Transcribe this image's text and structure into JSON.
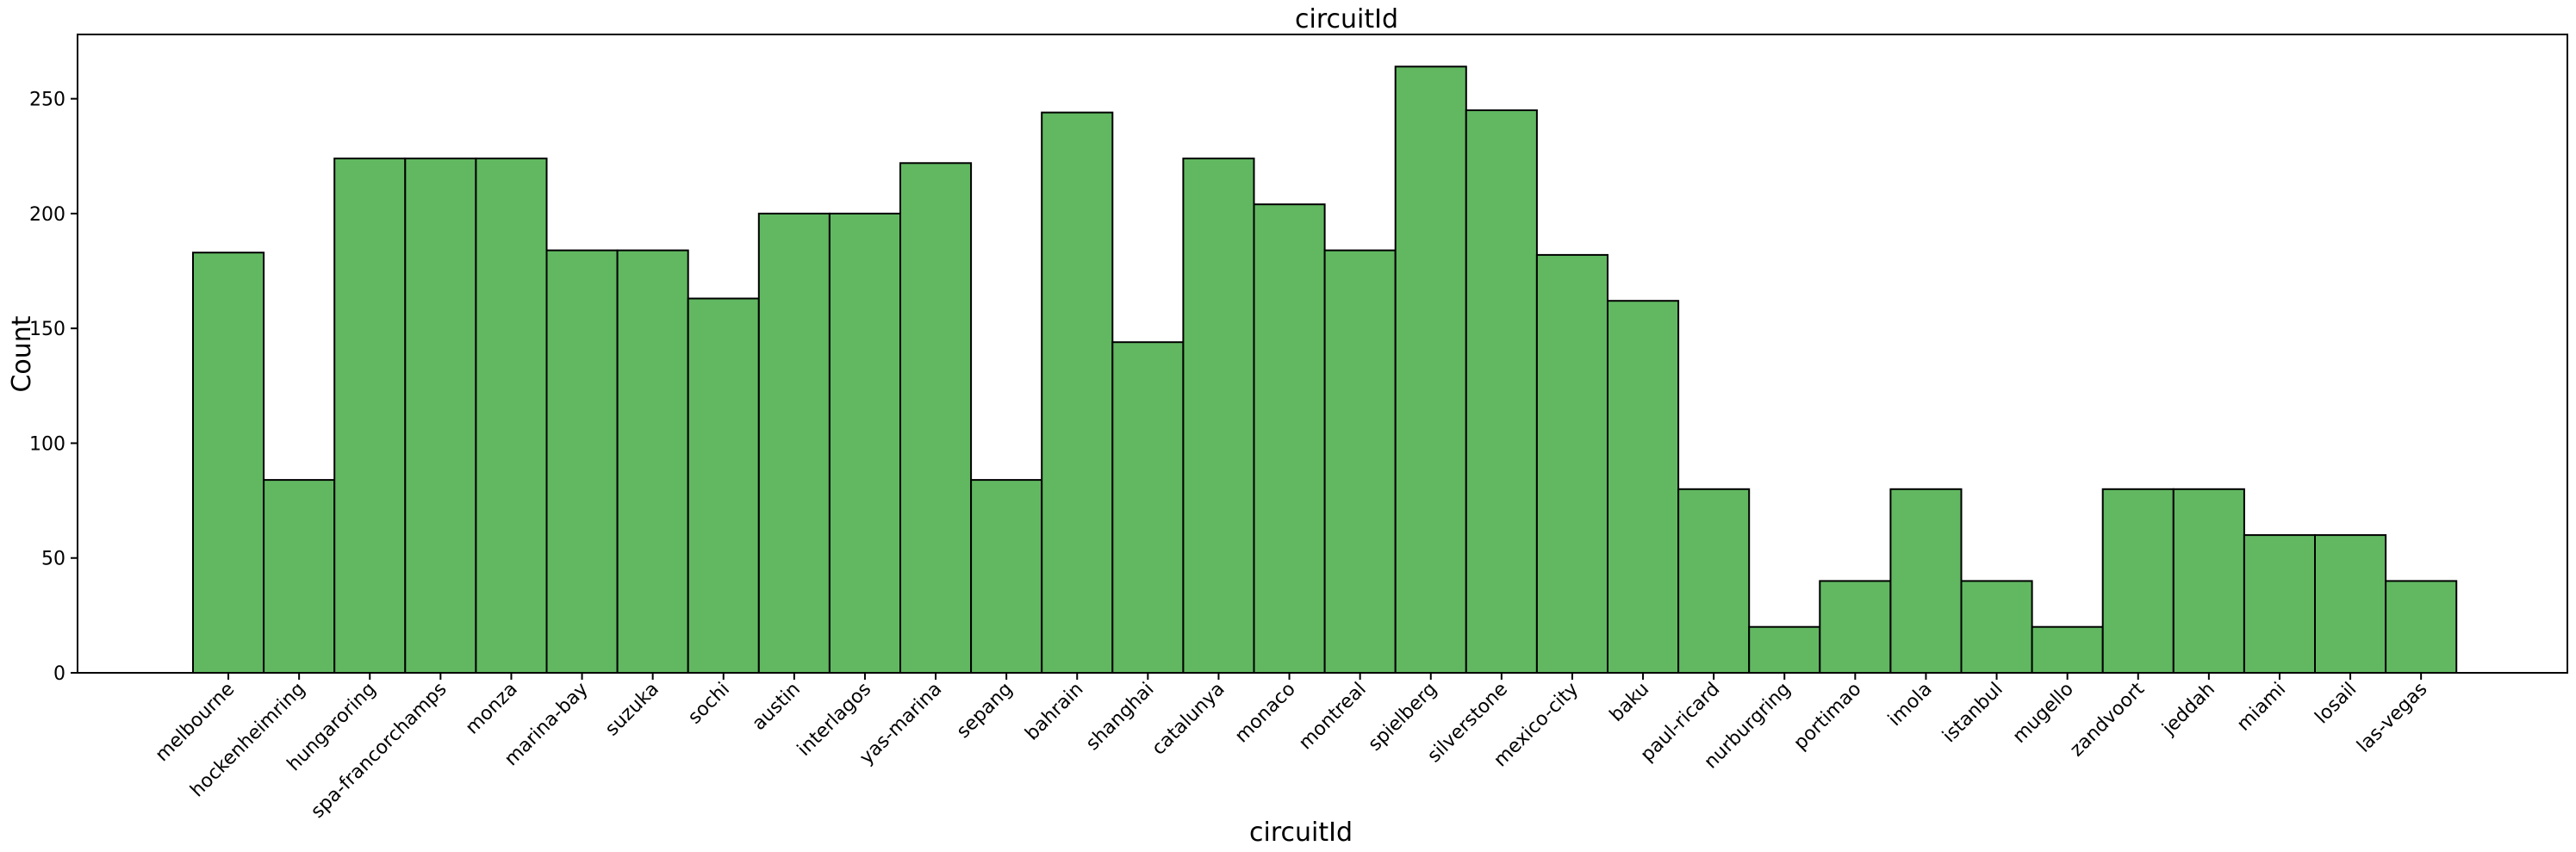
{
  "chart_data": {
    "type": "bar",
    "title": "circuitId",
    "xlabel": "circuitId",
    "ylabel": "Count",
    "ylim": [
      0,
      278
    ],
    "yticks": [
      0,
      50,
      100,
      150,
      200,
      250
    ],
    "categories": [
      "melbourne",
      "hockenheimring",
      "hungaroring",
      "spa-francorchamps",
      "monza",
      "marina-bay",
      "suzuka",
      "sochi",
      "austin",
      "interlagos",
      "yas-marina",
      "sepang",
      "bahrain",
      "shanghai",
      "catalunya",
      "monaco",
      "montreal",
      "spielberg",
      "silverstone",
      "mexico-city",
      "baku",
      "paul-ricard",
      "nurburgring",
      "portimao",
      "imola",
      "istanbul",
      "mugello",
      "zandvoort",
      "jeddah",
      "miami",
      "losail",
      "las-vegas"
    ],
    "values": [
      183,
      84,
      224,
      224,
      224,
      184,
      184,
      163,
      200,
      200,
      222,
      84,
      244,
      144,
      224,
      204,
      184,
      264,
      245,
      182,
      162,
      80,
      20,
      40,
      80,
      40,
      20,
      80,
      80,
      60,
      60,
      40
    ],
    "bar_color": "#61b861",
    "grid": false,
    "legend": false
  }
}
